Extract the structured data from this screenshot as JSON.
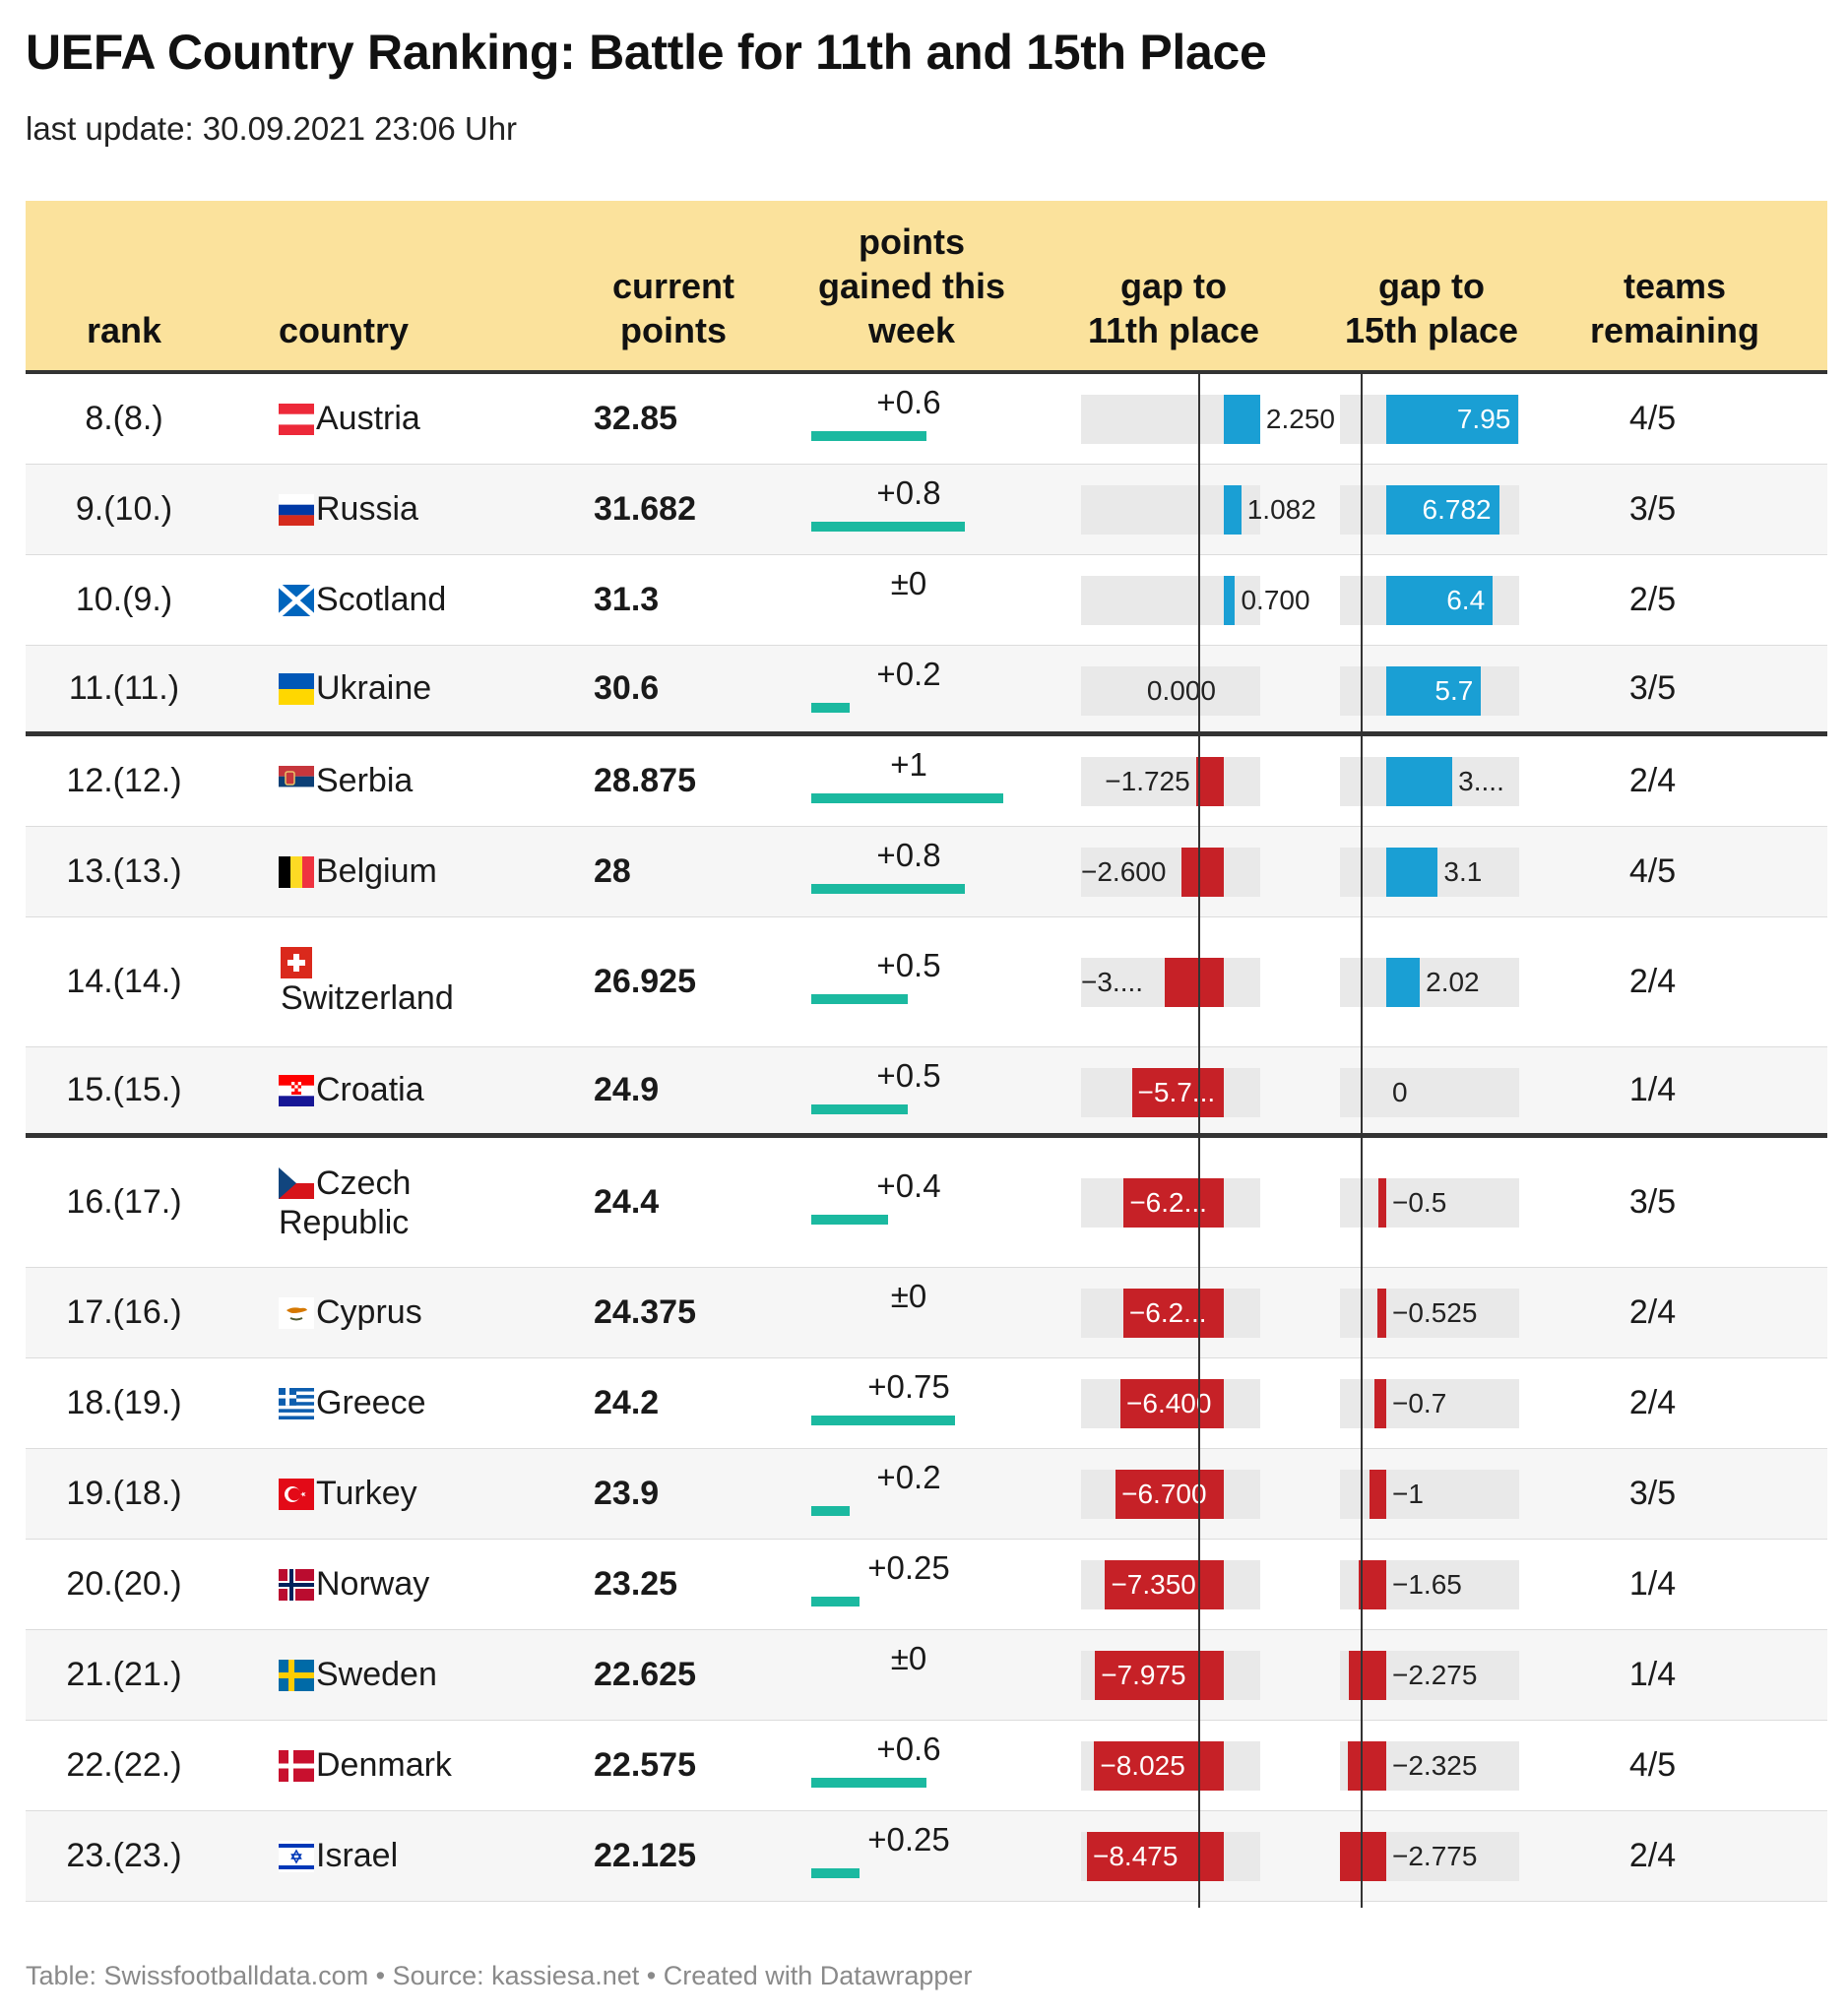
{
  "title": "UEFA Country Ranking: Battle for 11th and 15th Place",
  "subtitle": "last update: 30.09.2021 23:06 Uhr",
  "headers": {
    "rank": "rank",
    "country": "country",
    "points": [
      "current",
      "points"
    ],
    "gained": [
      "points",
      "gained this",
      "week"
    ],
    "gap11": [
      "gap to",
      "11th place"
    ],
    "gap15": [
      "gap to",
      "15th place"
    ],
    "teams": [
      "teams",
      "remaining"
    ]
  },
  "colors": {
    "header_bg": "#fbe29c",
    "gain_bar": "#1bb9a0",
    "positive_gap": "#1a9fd4",
    "negative_gap": "#c62127",
    "bar_background": "#e9e9e9"
  },
  "chart_data": {
    "type": "table",
    "columns": [
      "rank",
      "country",
      "current points",
      "points gained this week",
      "gap to 11th place",
      "gap to 15th place",
      "teams remaining"
    ],
    "gained_max": 1,
    "gap11_range": [
      -9,
      3
    ],
    "gap15_range": [
      -3,
      9
    ],
    "rows": [
      {
        "rank": "8.(8.)",
        "country": "Austria",
        "flag": "austria",
        "points": "32.85",
        "gained": 0.6,
        "gained_label": "+0.6",
        "gap11": 2.25,
        "gap11_label": "2.250",
        "gap15": 7.95,
        "gap15_label": "7.95",
        "teams": "4/5"
      },
      {
        "rank": "9.(10.)",
        "country": "Russia",
        "flag": "russia",
        "points": "31.682",
        "gained": 0.8,
        "gained_label": "+0.8",
        "gap11": 1.082,
        "gap11_label": "1.082",
        "gap15": 6.782,
        "gap15_label": "6.782",
        "teams": "3/5"
      },
      {
        "rank": "10.(9.)",
        "country": "Scotland",
        "flag": "scotland",
        "points": "31.3",
        "gained": 0,
        "gained_label": "±0",
        "gap11": 0.7,
        "gap11_label": "0.700",
        "gap15": 6.4,
        "gap15_label": "6.4",
        "teams": "2/5"
      },
      {
        "rank": "11.(11.)",
        "country": "Ukraine",
        "flag": "ukraine",
        "points": "30.6",
        "gained": 0.2,
        "gained_label": "+0.2",
        "gap11": 0,
        "gap11_label": "0.000",
        "gap15": 5.7,
        "gap15_label": "5.7",
        "teams": "3/5"
      },
      {
        "rank": "12.(12.)",
        "country": "Serbia",
        "flag": "serbia",
        "points": "28.875",
        "gained": 1,
        "gained_label": "+1",
        "gap11": -1.725,
        "gap11_label": "−1.725",
        "gap15": 3.975,
        "gap15_label": "3....",
        "teams": "2/4"
      },
      {
        "rank": "13.(13.)",
        "country": "Belgium",
        "flag": "belgium",
        "points": "28",
        "gained": 0.8,
        "gained_label": "+0.8",
        "gap11": -2.6,
        "gap11_label": "−2.600",
        "gap15": 3.1,
        "gap15_label": "3.1",
        "teams": "4/5"
      },
      {
        "rank": "14.(14.)",
        "country": "Switzerland",
        "flag": "switzerland",
        "points": "26.925",
        "gained": 0.5,
        "gained_label": "+0.5",
        "gap11": -3.675,
        "gap11_label": "−3....",
        "gap15": 2.02,
        "gap15_label": "2.02",
        "teams": "2/4"
      },
      {
        "rank": "15.(15.)",
        "country": "Croatia",
        "flag": "croatia",
        "points": "24.9",
        "gained": 0.5,
        "gained_label": "+0.5",
        "gap11": -5.7,
        "gap11_label": "−5.7...",
        "gap15": 0,
        "gap15_label": "0",
        "teams": "1/4"
      },
      {
        "rank": "16.(17.)",
        "country": "Czech Republic",
        "country_lines": [
          "Czech",
          "Republic"
        ],
        "flag": "czech",
        "points": "24.4",
        "gained": 0.4,
        "gained_label": "+0.4",
        "gap11": -6.2,
        "gap11_label": "−6.2...",
        "gap15": -0.5,
        "gap15_label": "−0.5",
        "teams": "3/5"
      },
      {
        "rank": "17.(16.)",
        "country": "Cyprus",
        "flag": "cyprus",
        "points": "24.375",
        "gained": 0,
        "gained_label": "±0",
        "gap11": -6.225,
        "gap11_label": "−6.2...",
        "gap15": -0.525,
        "gap15_label": "−0.525",
        "teams": "2/4"
      },
      {
        "rank": "18.(19.)",
        "country": "Greece",
        "flag": "greece",
        "points": "24.2",
        "gained": 0.75,
        "gained_label": "+0.75",
        "gap11": -6.4,
        "gap11_label": "−6.400",
        "gap15": -0.7,
        "gap15_label": "−0.7",
        "teams": "2/4"
      },
      {
        "rank": "19.(18.)",
        "country": "Turkey",
        "flag": "turkey",
        "points": "23.9",
        "gained": 0.2,
        "gained_label": "+0.2",
        "gap11": -6.7,
        "gap11_label": "−6.700",
        "gap15": -1,
        "gap15_label": "−1",
        "teams": "3/5"
      },
      {
        "rank": "20.(20.)",
        "country": "Norway",
        "flag": "norway",
        "points": "23.25",
        "gained": 0.25,
        "gained_label": "+0.25",
        "gap11": -7.35,
        "gap11_label": "−7.350",
        "gap15": -1.65,
        "gap15_label": "−1.65",
        "teams": "1/4"
      },
      {
        "rank": "21.(21.)",
        "country": "Sweden",
        "flag": "sweden",
        "points": "22.625",
        "gained": 0,
        "gained_label": "±0",
        "gap11": -7.975,
        "gap11_label": "−7.975",
        "gap15": -2.275,
        "gap15_label": "−2.275",
        "teams": "1/4"
      },
      {
        "rank": "22.(22.)",
        "country": "Denmark",
        "flag": "denmark",
        "points": "22.575",
        "gained": 0.6,
        "gained_label": "+0.6",
        "gap11": -8.025,
        "gap11_label": "−8.025",
        "gap15": -2.325,
        "gap15_label": "−2.325",
        "teams": "4/5"
      },
      {
        "rank": "23.(23.)",
        "country": "Israel",
        "flag": "israel",
        "points": "22.125",
        "gained": 0.25,
        "gained_label": "+0.25",
        "gap11": -8.475,
        "gap11_label": "−8.475",
        "gap15": -2.775,
        "gap15_label": "−2.775",
        "teams": "2/4"
      }
    ]
  },
  "footer": "Table: Swissfootballdata.com • Source: kassiesa.net • Created with Datawrapper"
}
